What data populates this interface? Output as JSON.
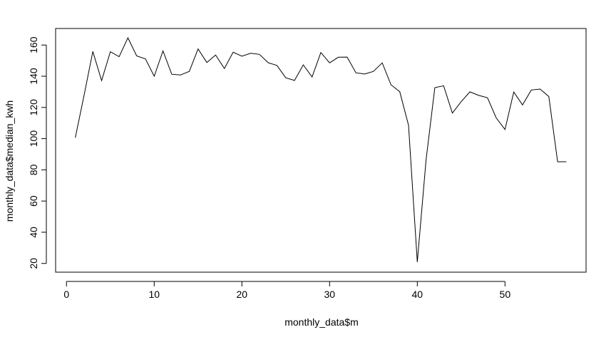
{
  "chart_data": {
    "type": "line",
    "title": "",
    "xlabel": "monthly_data$m",
    "ylabel": "monthly_data$median_kwh",
    "xlim": [
      -1.24,
      59.24
    ],
    "ylim": [
      14.4,
      170.6
    ],
    "xticks": [
      0,
      10,
      20,
      30,
      40,
      50
    ],
    "yticks": [
      20,
      40,
      60,
      80,
      100,
      120,
      140,
      160
    ],
    "grid": false,
    "line_color": "#000000",
    "x": [
      1,
      2,
      3,
      4,
      5,
      6,
      7,
      8,
      9,
      10,
      11,
      12,
      13,
      14,
      15,
      16,
      17,
      18,
      19,
      20,
      21,
      22,
      23,
      24,
      25,
      26,
      27,
      28,
      29,
      30,
      31,
      32,
      33,
      34,
      35,
      36,
      37,
      38,
      39,
      40,
      41,
      42,
      43,
      44,
      45,
      46,
      47,
      48,
      49,
      50,
      51,
      52,
      53,
      54,
      55,
      56,
      57
    ],
    "y": [
      100.6,
      127.7,
      155.9,
      137.2,
      155.7,
      152.5,
      164.6,
      153,
      151.1,
      140,
      156.2,
      141.3,
      140.8,
      143.1,
      157.5,
      148.8,
      153.6,
      145,
      155.4,
      152.9,
      154.7,
      154,
      148.7,
      146.9,
      139,
      137.3,
      147.3,
      139.5,
      155.2,
      148.6,
      152.2,
      152.3,
      142.2,
      141.4,
      143.1,
      148.6,
      134.5,
      130.1,
      108.6,
      20.9,
      86.4,
      132.7,
      133.9,
      116.4,
      123.7,
      130,
      127.7,
      126.2,
      113.3,
      105.9,
      129.9,
      121.6,
      131.2,
      131.8,
      127,
      85.2,
      85.2
    ]
  }
}
